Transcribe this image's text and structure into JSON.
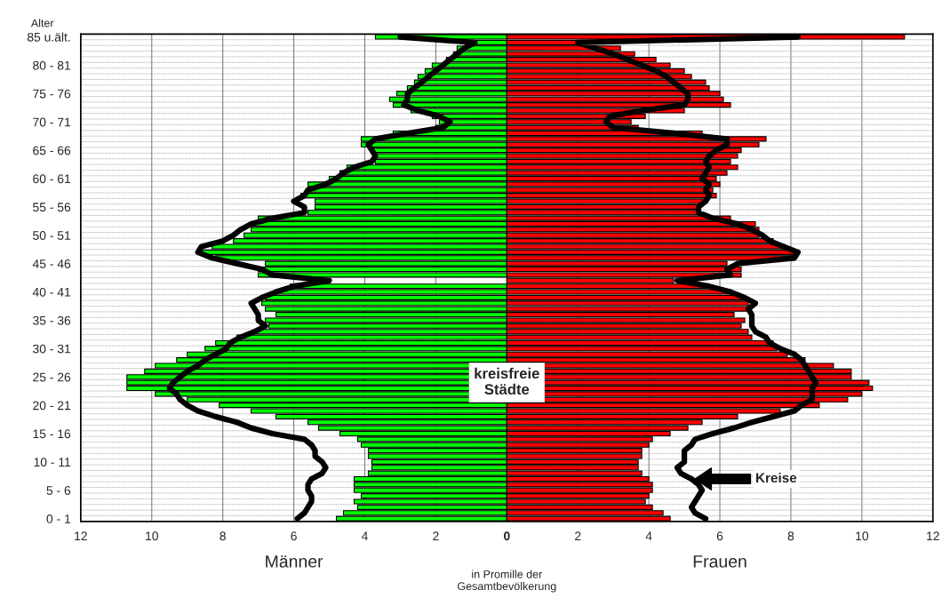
{
  "chart_data": {
    "type": "bar",
    "orientation": "horizontal",
    "stacked": true,
    "ylabel": "Alter",
    "xlabel": "in Promille der\nGesamtbevölkerung",
    "categories": [
      "85 u.ält.",
      null,
      null,
      null,
      null,
      "80 - 81",
      null,
      null,
      null,
      null,
      "75 - 76",
      null,
      null,
      null,
      null,
      "70 - 71",
      null,
      null,
      null,
      null,
      "65 - 66",
      null,
      null,
      null,
      null,
      "60 - 61",
      null,
      null,
      null,
      null,
      "55 - 56",
      null,
      null,
      null,
      null,
      "50 - 51",
      null,
      null,
      null,
      null,
      "45 - 46",
      null,
      null,
      null,
      null,
      "40 - 41",
      null,
      null,
      null,
      null,
      "35 - 36",
      null,
      null,
      null,
      null,
      "30 - 31",
      null,
      null,
      null,
      null,
      "25 - 26",
      null,
      null,
      null,
      null,
      "20 - 21",
      null,
      null,
      null,
      null,
      "15 - 16",
      null,
      null,
      null,
      null,
      "10 - 11",
      null,
      null,
      null,
      null,
      "5 - 6",
      null,
      null,
      null,
      null,
      "0 - 1"
    ],
    "series": [
      {
        "color": "#00ff00",
        "values": [
          -3.7,
          -0.9,
          -1.4,
          -1.5,
          -1.7,
          -2.1,
          -2.3,
          -2.5,
          -2.6,
          -2.8,
          -3.1,
          -3.3,
          -3.2,
          -2.7,
          -2.1,
          -1.9,
          -2.0,
          -3.2,
          -4.1,
          -4.1,
          -3.8,
          -3.7,
          -3.7,
          -4.5,
          -4.7,
          -5.0,
          -5.6,
          -5.6,
          -5.8,
          -5.4,
          -5.4,
          -5.6,
          -7.0,
          -7.2,
          -7.2,
          -7.4,
          -7.7,
          -8.3,
          -8.6,
          -8.2,
          -6.8,
          -7.0,
          -7.0,
          null,
          -6.1,
          -6.5,
          -6.8,
          -6.9,
          -6.8,
          -6.5,
          -6.8,
          -6.7,
          -7.1,
          -7.6,
          -8.2,
          -8.5,
          -9.0,
          -9.3,
          -9.9,
          -10.2,
          -10.7,
          -10.7,
          -10.7,
          -9.9,
          -9.0,
          -8.1,
          -7.2,
          -6.5,
          -5.6,
          -5.3,
          -4.7,
          -4.2,
          -4.1,
          -3.9,
          -3.9,
          -3.8,
          -3.8,
          -3.9,
          -4.3,
          -4.3,
          -4.3,
          -4.1,
          -4.3,
          -4.2,
          -4.6,
          -4.8
        ]
      },
      {
        "color": "#ff0000",
        "values": [
          11.2,
          2.0,
          3.2,
          3.6,
          4.2,
          4.6,
          5.0,
          5.2,
          5.6,
          5.7,
          6.0,
          6.1,
          6.3,
          5.0,
          3.9,
          3.5,
          3.7,
          5.5,
          7.3,
          7.1,
          6.6,
          6.5,
          6.3,
          6.5,
          6.2,
          5.9,
          6.0,
          5.8,
          5.9,
          5.6,
          5.4,
          5.4,
          6.3,
          7.0,
          7.1,
          7.1,
          7.5,
          7.8,
          8.1,
          8.1,
          6.2,
          6.6,
          6.6,
          4.7,
          5.7,
          6.3,
          6.7,
          6.8,
          6.8,
          6.4,
          6.7,
          6.6,
          6.8,
          6.9,
          7.5,
          7.6,
          7.9,
          8.4,
          9.2,
          9.7,
          9.7,
          10.2,
          10.3,
          10.0,
          9.6,
          8.8,
          7.7,
          6.5,
          5.5,
          5.1,
          4.6,
          4.1,
          4.0,
          3.8,
          3.8,
          3.7,
          3.7,
          3.8,
          4.0,
          4.1,
          4.1,
          4.0,
          3.9,
          4.1,
          4.4,
          4.6
        ]
      },
      {
        "type": "line",
        "color": "#000000",
        "values": [
          -3.0,
          -0.9,
          -1.2,
          -1.4,
          -1.6,
          -1.8,
          -2.0,
          -2.2,
          -2.4,
          -2.6,
          -2.8,
          -2.8,
          -2.9,
          -2.5,
          -1.9,
          -1.6,
          -1.8,
          -2.8,
          -3.7,
          -3.9,
          -3.8,
          -3.7,
          -3.8,
          -4.3,
          -4.6,
          -4.8,
          -5.1,
          -5.6,
          -5.7,
          -6.0,
          -5.7,
          -5.7,
          -6.6,
          -7.2,
          -7.5,
          -7.7,
          -8.0,
          -8.6,
          -8.7,
          -8.3,
          -7.6,
          -6.9,
          -6.6,
          -5.0,
          -6.0,
          -6.5,
          -6.9,
          -7.2,
          -7.1,
          -7.0,
          -7.0,
          -6.8,
          -7.1,
          -7.5,
          -7.8,
          -7.9,
          -8.2,
          -8.5,
          -8.7,
          -9.0,
          -9.2,
          -9.4,
          -9.5,
          -9.3,
          -9.2,
          -9.0,
          -8.7,
          -8.2,
          -7.6,
          -7.2,
          -6.6,
          -5.7,
          -5.5,
          -5.4,
          -5.4,
          -5.2,
          -5.1,
          -5.2,
          -5.5,
          -5.6,
          -5.6,
          -5.5,
          -5.5,
          -5.6,
          -5.7,
          -5.9
        ]
      },
      {
        "type": "line",
        "color": "#000000",
        "values": [
          8.2,
          2.0,
          2.5,
          3.0,
          3.4,
          3.8,
          4.2,
          4.5,
          4.7,
          4.9,
          5.1,
          5.1,
          5.0,
          3.8,
          2.9,
          2.8,
          3.0,
          4.7,
          6.2,
          6.2,
          5.9,
          5.7,
          5.6,
          5.7,
          5.6,
          5.5,
          5.7,
          5.6,
          5.7,
          5.6,
          5.4,
          5.4,
          5.8,
          6.5,
          6.9,
          7.2,
          7.4,
          7.8,
          8.2,
          8.1,
          6.5,
          6.2,
          6.3,
          4.8,
          5.7,
          6.3,
          6.7,
          7.0,
          6.8,
          6.9,
          6.9,
          6.9,
          7.0,
          7.3,
          7.4,
          7.7,
          8.1,
          8.3,
          8.4,
          8.5,
          8.6,
          8.7,
          8.6,
          8.6,
          8.6,
          8.3,
          8.1,
          7.5,
          6.9,
          6.4,
          5.8,
          5.3,
          5.2,
          5.0,
          5.0,
          5.0,
          4.8,
          4.9,
          5.2,
          5.4,
          5.5,
          5.4,
          5.3,
          5.2,
          5.3,
          5.6
        ]
      }
    ],
    "xlim": [
      -12,
      12
    ],
    "xticks": [
      {
        "value": -12,
        "label": "12"
      },
      {
        "value": -10,
        "label": "10"
      },
      {
        "value": -8,
        "label": "8"
      },
      {
        "value": -6,
        "label": "6"
      },
      {
        "value": -4,
        "label": "4"
      },
      {
        "value": -2,
        "label": "2"
      },
      0,
      2,
      4,
      6,
      8,
      10,
      12
    ],
    "grid": true,
    "line_style": "solid",
    "marker": "none",
    "annotations": [
      "kreisfreie\nStädte",
      "Kreise",
      "Männer",
      "Frauen"
    ]
  }
}
